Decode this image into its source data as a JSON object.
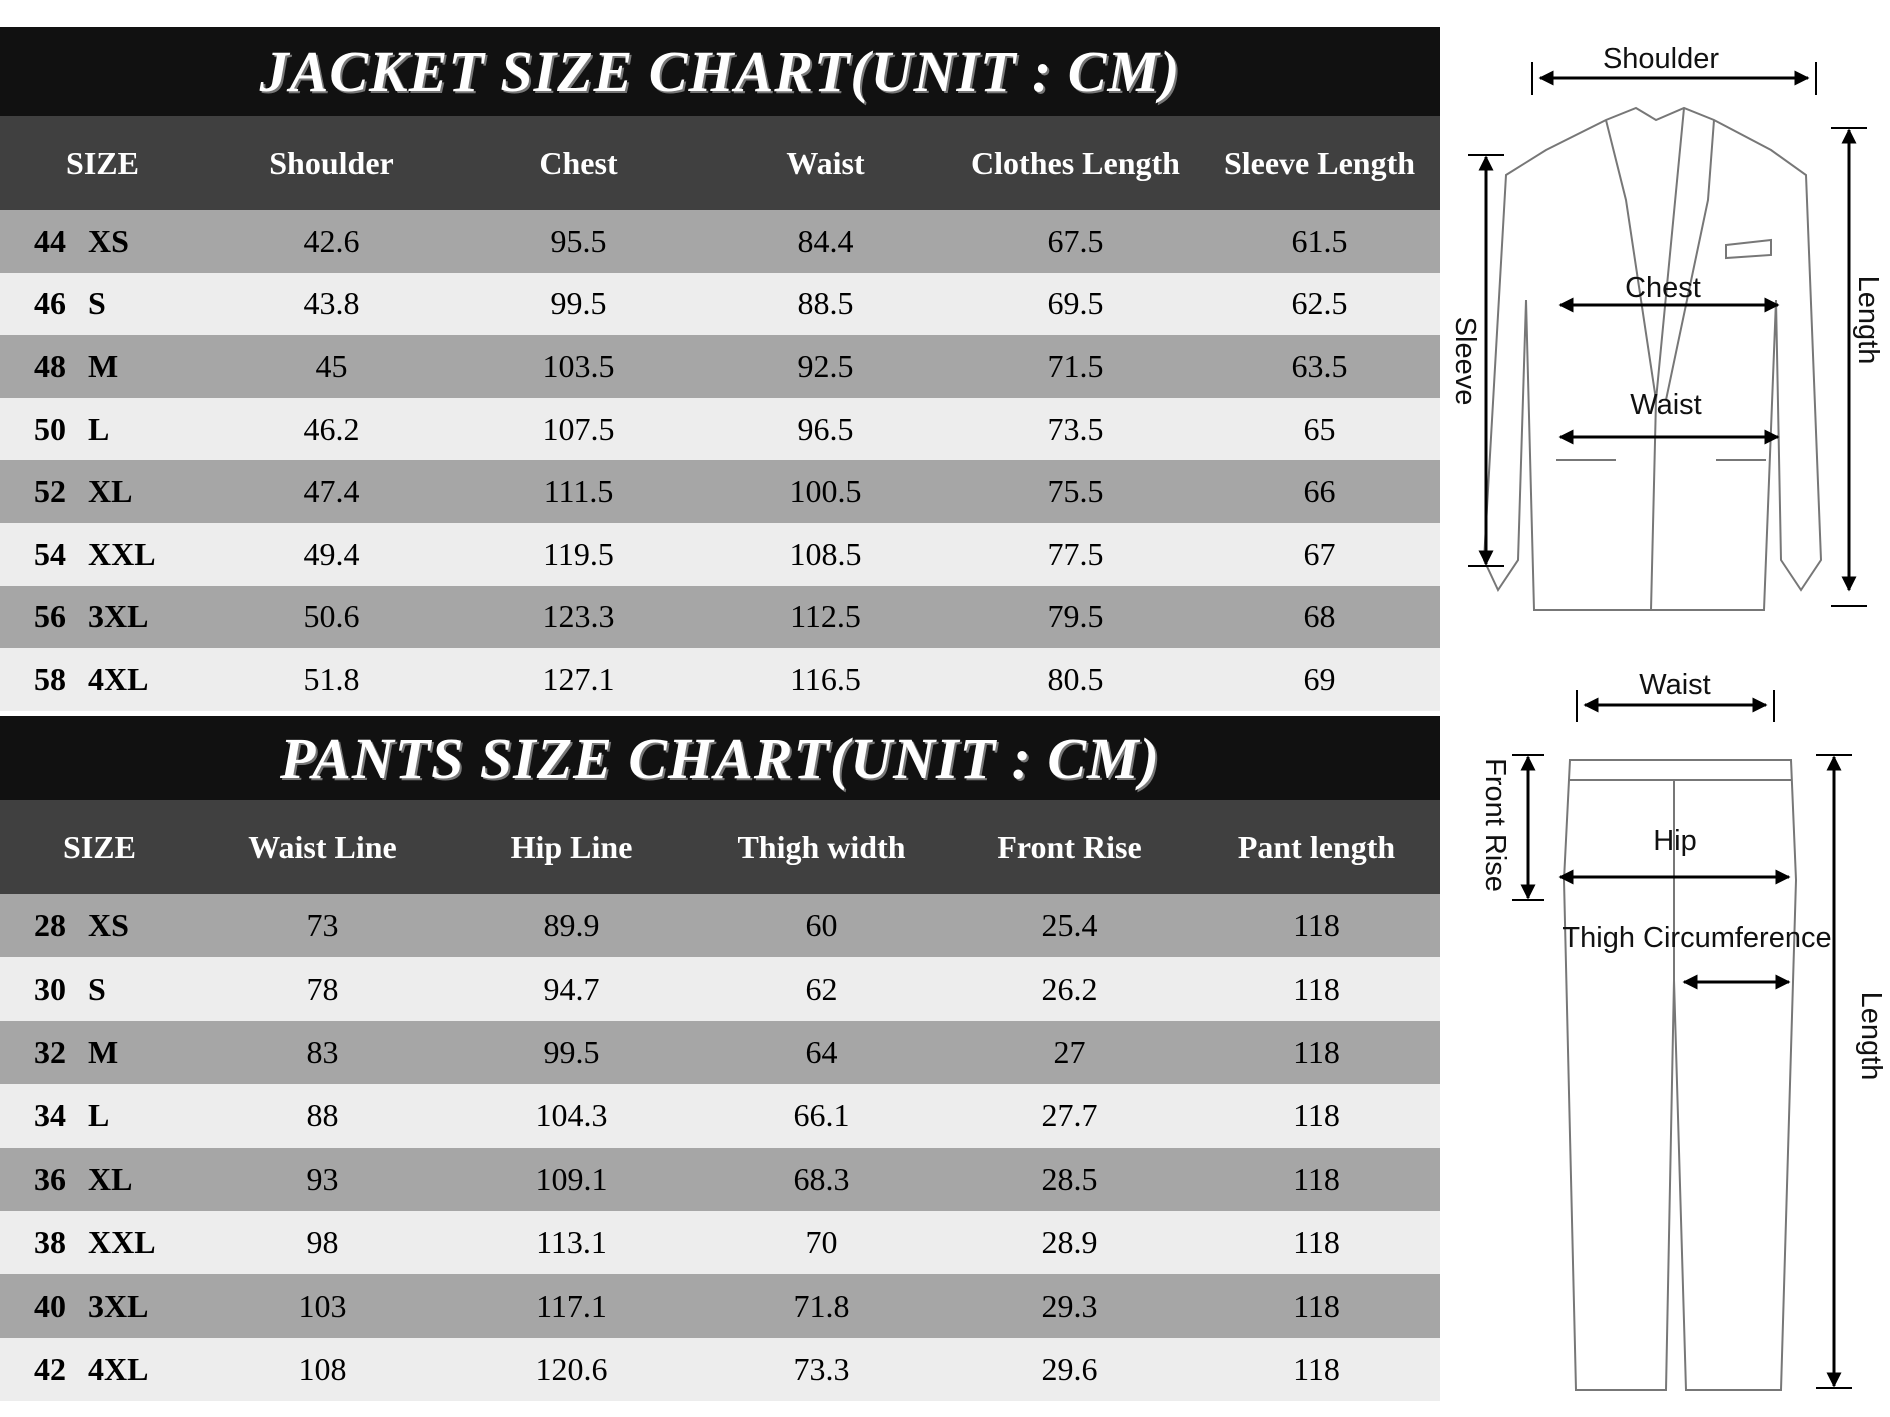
{
  "jacket": {
    "title": "JACKET SIZE CHART(UNIT : CM)",
    "headers": [
      "SIZE",
      "Shoulder",
      "Chest",
      "Waist",
      "Clothes Length",
      "Sleeve Length"
    ],
    "rows": [
      [
        "44",
        "XS",
        "42.6",
        "95.5",
        "84.4",
        "67.5",
        "61.5"
      ],
      [
        "46",
        "S",
        "43.8",
        "99.5",
        "88.5",
        "69.5",
        "62.5"
      ],
      [
        "48",
        "M",
        "45",
        "103.5",
        "92.5",
        "71.5",
        "63.5"
      ],
      [
        "50",
        "L",
        "46.2",
        "107.5",
        "96.5",
        "73.5",
        "65"
      ],
      [
        "52",
        "XL",
        "47.4",
        "111.5",
        "100.5",
        "75.5",
        "66"
      ],
      [
        "54",
        "XXL",
        "49.4",
        "119.5",
        "108.5",
        "77.5",
        "67"
      ],
      [
        "56",
        "3XL",
        "50.6",
        "123.3",
        "112.5",
        "79.5",
        "68"
      ],
      [
        "58",
        "4XL",
        "51.8",
        "127.1",
        "116.5",
        "80.5",
        "69"
      ]
    ]
  },
  "pants": {
    "title": "PANTS SIZE CHART(UNIT : CM)",
    "headers": [
      "SIZE",
      "Waist Line",
      "Hip Line",
      "Thigh width",
      "Front Rise",
      "Pant length"
    ],
    "rows": [
      [
        "28",
        "XS",
        "73",
        "89.9",
        "60",
        "25.4",
        "118"
      ],
      [
        "30",
        "S",
        "78",
        "94.7",
        "62",
        "26.2",
        "118"
      ],
      [
        "32",
        "M",
        "83",
        "99.5",
        "64",
        "27",
        "118"
      ],
      [
        "34",
        "L",
        "88",
        "104.3",
        "66.1",
        "27.7",
        "118"
      ],
      [
        "36",
        "XL",
        "93",
        "109.1",
        "68.3",
        "28.5",
        "118"
      ],
      [
        "38",
        "XXL",
        "98",
        "113.1",
        "70",
        "28.9",
        "118"
      ],
      [
        "40",
        "3XL",
        "103",
        "117.1",
        "71.8",
        "29.3",
        "118"
      ],
      [
        "42",
        "4XL",
        "108",
        "120.6",
        "73.3",
        "29.6",
        "118"
      ]
    ]
  },
  "diagram": {
    "jacket": {
      "shoulder": "Shoulder",
      "chest": "Chest",
      "waist": "Waist",
      "sleeve": "Sleeve",
      "length": "Length"
    },
    "pants": {
      "waist": "Waist",
      "hip": "Hip",
      "front_rise": "Front Rise",
      "thigh": "Thigh Circumference",
      "length": "Length"
    }
  }
}
